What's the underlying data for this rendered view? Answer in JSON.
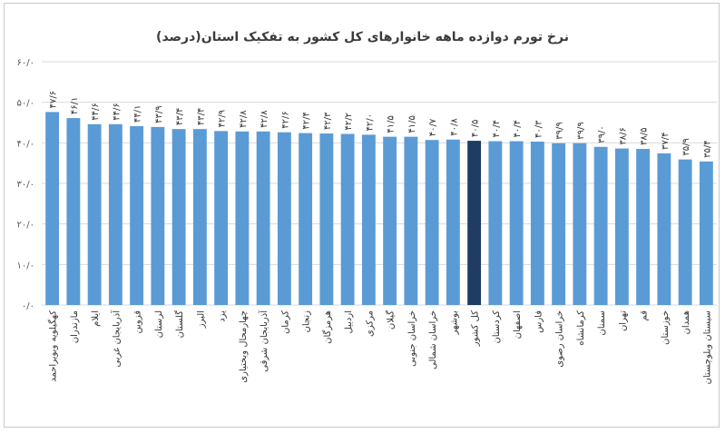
{
  "chart_data": {
    "type": "bar",
    "title": "نرخ تورم دوازده ماهه خانوارهای کل کشور به تفکیک استان(درصد)",
    "ylim": [
      0,
      60
    ],
    "y_ticks": [
      0,
      10,
      20,
      30,
      40,
      50,
      60
    ],
    "y_tick_labels": [
      "۰/۰",
      "۱۰/۰",
      "۲۰/۰",
      "۳۰/۰",
      "۴۰/۰",
      "۵۰/۰",
      "۶۰/۰"
    ],
    "grid": true,
    "highlight_category": "کل کشور",
    "colors": {
      "bar": "#5b9bd5",
      "highlight": "#1f3c63"
    },
    "categories": [
      "کهگیلویه وبویراحمد",
      "مازندران",
      "ایلام",
      "آذربایجان غربی",
      "قزوین",
      "لرستان",
      "گلستان",
      "البرز",
      "یزد",
      "چهارمحال وبختیاری",
      "آذربایجان شرقی",
      "کرمان",
      "زنجان",
      "هرمزگان",
      "اردبیل",
      "مرکزی",
      "گیلان",
      "خراسان جنوبی",
      "خراسان شمالی",
      "بوشهر",
      "کل کشور",
      "کردستان",
      "اصفهان",
      "فارس",
      "خراسان رضوی",
      "کرمانشاه",
      "سمنان",
      "تهران",
      "قم",
      "خوزستان",
      "همدان",
      "سیستان وبلوچستان"
    ],
    "values": [
      47.6,
      46.1,
      44.6,
      44.6,
      44.1,
      43.9,
      43.4,
      43.4,
      42.9,
      42.8,
      42.8,
      42.6,
      42.4,
      42.3,
      42.2,
      42.0,
      41.5,
      41.5,
      40.7,
      40.8,
      40.5,
      40.4,
      40.4,
      40.3,
      39.9,
      39.9,
      39.0,
      38.6,
      38.5,
      37.4,
      35.9,
      35.4
    ],
    "value_labels": [
      "۴۷/۶",
      "۴۶/۱",
      "۴۴/۶",
      "۴۴/۶",
      "۴۴/۱",
      "۴۳/۹",
      "۴۳/۴",
      "۴۳/۴",
      "۴۲/۹",
      "۴۲/۸",
      "۴۲/۸",
      "۴۲/۶",
      "۴۲/۴",
      "۴۲/۳",
      "۴۲/۲",
      "۴۲/۰",
      "۴۱/۵",
      "۴۱/۵",
      "۴۰/۷",
      "۴۰/۸",
      "۴۰/۵",
      "۴۰/۴",
      "۴۰/۴",
      "۴۰/۳",
      "۳۹/۹",
      "۳۹/۹",
      "۳۹/۰",
      "۳۸/۶",
      "۳۸/۵",
      "۳۷/۴",
      "۳۵/۹",
      "۳۵/۴"
    ]
  }
}
